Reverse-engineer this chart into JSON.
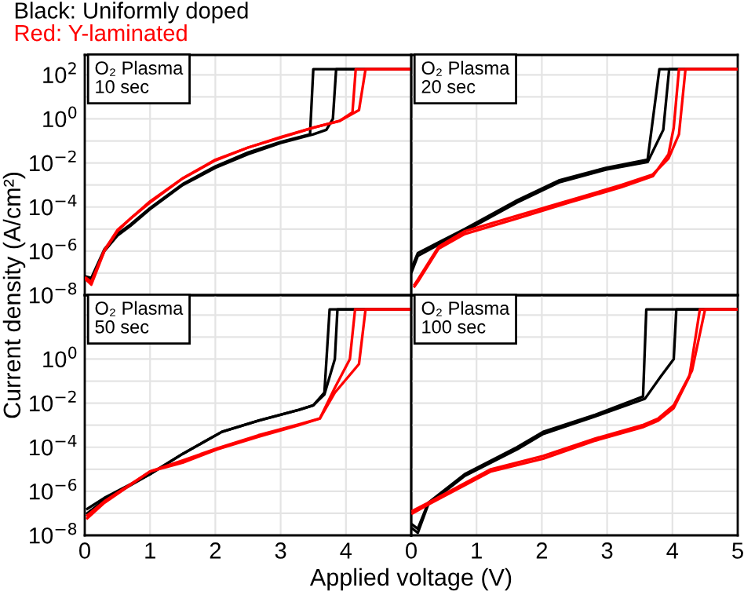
{
  "chart_data": [
    {
      "type": "line",
      "log": true,
      "legend": "top left",
      "grid": true,
      "tick_labels": "y",
      "annotations": [
        "O₂ Plasma\n10 sec"
      ],
      "xlim": [
        0,
        5
      ],
      "ylim": [
        1e-08,
        800
      ],
      "xticks": [
        0,
        1,
        2,
        3,
        4
      ],
      "yticks": [
        {
          "value": 1e-08,
          "label": "10$^{−8}$"
        },
        {
          "value": 1e-07,
          "label": null
        },
        {
          "value": 1e-06,
          "label": "10$^{−6}$"
        },
        {
          "value": 1e-05,
          "label": null
        },
        {
          "value": 0.0001,
          "label": "10$^{−4}$"
        },
        {
          "value": 0.001,
          "label": null
        },
        {
          "value": 0.01,
          "label": "10$^{−2}$"
        },
        {
          "value": 0.1,
          "label": null
        },
        {
          "value": 1,
          "label": "10$^{0}$"
        },
        {
          "value": 10,
          "label": null
        },
        {
          "value": 100,
          "label": "10$^{2}$"
        }
      ],
      "series": [
        {
          "name": "Black: Uniformly doped",
          "color": "#000000",
          "x": [
            0.02,
            0.1,
            0.3,
            0.5,
            0.7,
            1.0,
            1.5,
            2.0,
            2.5,
            3.0,
            3.5,
            3.7,
            3.8,
            3.85,
            5.0
          ],
          "values": [
            6e-08,
            5e-08,
            1e-06,
            5e-06,
            1.4e-05,
            8e-05,
            0.001,
            0.006,
            0.025,
            0.08,
            0.2,
            0.32,
            1,
            180,
            180
          ]
        },
        {
          "color": "#000000",
          "x": [
            0.02,
            0.1,
            0.3,
            0.5,
            0.7,
            1.0,
            1.5,
            2.0,
            2.5,
            3.0,
            3.45,
            3.5,
            5.0
          ],
          "values": [
            7e-08,
            6e-08,
            1.2e-06,
            6e-06,
            1.6e-05,
            9e-05,
            0.0011,
            0.007,
            0.03,
            0.09,
            0.2,
            180,
            180
          ]
        },
        {
          "name": "Red: Y-laminated",
          "color": "#ff0000",
          "x": [
            0.02,
            0.1,
            0.3,
            0.5,
            0.7,
            1.0,
            1.5,
            2.0,
            2.5,
            3.0,
            3.5,
            3.9,
            4.1,
            4.15,
            5.0
          ],
          "values": [
            5e-08,
            3e-08,
            1e-06,
            8e-06,
            3e-05,
            0.00016,
            0.002,
            0.013,
            0.05,
            0.14,
            0.4,
            0.8,
            2,
            180,
            180
          ]
        },
        {
          "color": "#ff0000",
          "x": [
            0.02,
            0.1,
            0.3,
            0.5,
            0.7,
            1.0,
            1.5,
            2.0,
            2.5,
            3.0,
            3.5,
            3.9,
            4.2,
            4.3,
            5.0
          ],
          "values": [
            6e-08,
            4e-08,
            1.1e-06,
            9e-06,
            3e-05,
            0.00018,
            0.002,
            0.014,
            0.05,
            0.15,
            0.4,
            0.8,
            2.5,
            180,
            180
          ]
        }
      ]
    },
    {
      "type": "line",
      "log": true,
      "grid": true,
      "tick_labels": false,
      "annotations": [
        "O₂ Plasma\n20 sec"
      ],
      "xlim": [
        0,
        5
      ],
      "ylim": [
        1e-08,
        800
      ],
      "xticks": [
        0,
        1,
        2,
        3,
        4,
        5
      ],
      "yticks": [
        1e-08,
        1e-07,
        1e-06,
        1e-05,
        0.0001,
        0.001,
        0.01,
        0.1,
        1,
        10,
        100
      ],
      "series": [
        {
          "color": "#000000",
          "x": [
            0,
            0.1,
            0.42,
            0.82,
            1.62,
            2.26,
            2.98,
            3.62,
            3.86,
            3.95,
            5
          ],
          "values": [
            1e-07,
            6e-07,
            2e-06,
            8e-06,
            0.00016,
            0.0013,
            0.005,
            0.011,
            0.32,
            180,
            180
          ]
        },
        {
          "color": "#000000",
          "x": [
            0,
            0.1,
            0.42,
            0.82,
            1.62,
            2.26,
            2.98,
            3.62,
            3.8,
            5
          ],
          "values": [
            1.6e-07,
            8e-07,
            2.5e-06,
            1e-05,
            0.0002,
            0.0016,
            0.006,
            0.014,
            180,
            180
          ]
        },
        {
          "color": "#ff0000",
          "x": [
            0.05,
            0.1,
            0.42,
            0.82,
            1.62,
            2.42,
            3.22,
            3.7,
            3.94,
            4.02,
            4.1,
            5
          ],
          "values": [
            2.5e-08,
            4e-08,
            1.3e-06,
            6e-06,
            3e-05,
            0.00016,
            0.0008,
            0.0025,
            0.025,
            0.4,
            180,
            180
          ]
        },
        {
          "color": "#ff0000",
          "x": [
            0.05,
            0.1,
            0.42,
            0.82,
            1.62,
            2.42,
            3.22,
            3.7,
            3.94,
            4.1,
            4.2,
            5
          ],
          "values": [
            3e-08,
            5e-08,
            1.6e-06,
            8e-06,
            4e-05,
            0.0002,
            0.001,
            0.003,
            0.016,
            0.2,
            180,
            180
          ]
        }
      ]
    },
    {
      "type": "line",
      "log": true,
      "grid": true,
      "xlabel": "Applied voltage (V)",
      "ylabel": "Current density (A/cm²)",
      "annotations": [
        "O₂ Plasma\n50 sec"
      ],
      "xlim": [
        0,
        5
      ],
      "ylim": [
        1e-08,
        800
      ],
      "xticks": [
        0,
        1,
        2,
        3,
        4
      ],
      "yticks": [
        {
          "value": 1e-08,
          "label": "10$^{−8}$"
        },
        {
          "value": 1e-07,
          "label": null
        },
        {
          "value": 1e-06,
          "label": "10$^{−6}$"
        },
        {
          "value": 1e-05,
          "label": null
        },
        {
          "value": 0.0001,
          "label": "10$^{−4}$"
        },
        {
          "value": 0.001,
          "label": null
        },
        {
          "value": 0.01,
          "label": "10$^{−2}$"
        },
        {
          "value": 0.1,
          "label": null
        },
        {
          "value": 1,
          "label": "10$^{0}$"
        },
        {
          "value": 10,
          "label": null
        },
        {
          "value": 100,
          "label": null
        }
      ],
      "series": [
        {
          "color": "#000000",
          "x": [
            0.04,
            0.3,
            1,
            1.5,
            2.1,
            2.66,
            3.28,
            3.5,
            3.67,
            3.83,
            3.87,
            5
          ],
          "values": [
            1e-07,
            4e-07,
            6e-06,
            5e-05,
            0.0005,
            0.0016,
            0.005,
            0.008,
            0.025,
            1,
            180,
            180
          ]
        },
        {
          "color": "#000000",
          "x": [
            0.04,
            0.3,
            1,
            1.5,
            2.1,
            2.66,
            3.28,
            3.5,
            3.67,
            3.75,
            5
          ],
          "values": [
            1.6e-07,
            5e-07,
            6e-06,
            5e-05,
            0.0005,
            0.0016,
            0.005,
            0.008,
            0.03,
            180,
            180
          ]
        },
        {
          "color": "#ff0000",
          "x": [
            0.04,
            0.3,
            1,
            1.5,
            2.03,
            2.66,
            3.28,
            3.6,
            3.83,
            4.06,
            4.14,
            5
          ],
          "values": [
            6e-08,
            3e-07,
            8e-06,
            2e-05,
            8e-05,
            0.0003,
            0.001,
            0.002,
            0.05,
            1,
            180,
            180
          ]
        },
        {
          "color": "#ff0000",
          "x": [
            0.04,
            0.3,
            1,
            1.5,
            2.03,
            2.66,
            3.28,
            3.6,
            3.83,
            4.2,
            4.3,
            5
          ],
          "values": [
            8e-08,
            3.5e-07,
            8e-06,
            2.5e-05,
            9e-05,
            0.00035,
            0.0011,
            0.002,
            0.03,
            0.6,
            180,
            180
          ]
        }
      ]
    },
    {
      "type": "line",
      "log": true,
      "grid": true,
      "tick_labels": "x",
      "annotations": [
        "O₂ Plasma\n100 sec"
      ],
      "xlim": [
        0,
        5
      ],
      "ylim": [
        1e-08,
        800
      ],
      "xticks": [
        0,
        1,
        2,
        3,
        4,
        5
      ],
      "yticks": [
        1e-08,
        1e-07,
        1e-06,
        1e-05,
        0.0001,
        0.001,
        0.01,
        0.1,
        1,
        10,
        100
      ],
      "series": [
        {
          "color": "#000000",
          "x": [
            0.02,
            0.1,
            0.26,
            0.82,
            1.62,
            2.02,
            2.82,
            3.58,
            3.82,
            4.02,
            4.06,
            5
          ],
          "values": [
            2e-08,
            1.3e-08,
            2.5e-07,
            5e-06,
            8e-05,
            0.0004,
            0.0025,
            0.016,
            0.16,
            1,
            180,
            180
          ]
        },
        {
          "color": "#000000",
          "x": [
            0.02,
            0.1,
            0.26,
            0.82,
            1.62,
            2.02,
            2.82,
            3.55,
            3.6,
            5
          ],
          "values": [
            3e-08,
            2e-08,
            3e-07,
            6e-06,
            0.0001,
            0.0005,
            0.003,
            0.02,
            180,
            180
          ]
        },
        {
          "color": "#ff0000",
          "x": [
            0.02,
            0.26,
            1.22,
            2.02,
            2.82,
            3.54,
            3.78,
            4.02,
            4.26,
            4.42,
            5
          ],
          "values": [
            1e-07,
            2.5e-07,
            8e-06,
            3e-05,
            0.0002,
            0.0008,
            0.0016,
            0.006,
            0.16,
            180,
            180
          ]
        },
        {
          "color": "#ff0000",
          "x": [
            0.02,
            0.26,
            1.22,
            2.02,
            2.82,
            3.54,
            3.78,
            4.02,
            4.3,
            4.5,
            5
          ],
          "values": [
            1.3e-07,
            3e-07,
            1e-05,
            4e-05,
            0.00025,
            0.001,
            0.002,
            0.008,
            0.3,
            180,
            180
          ]
        }
      ]
    }
  ]
}
